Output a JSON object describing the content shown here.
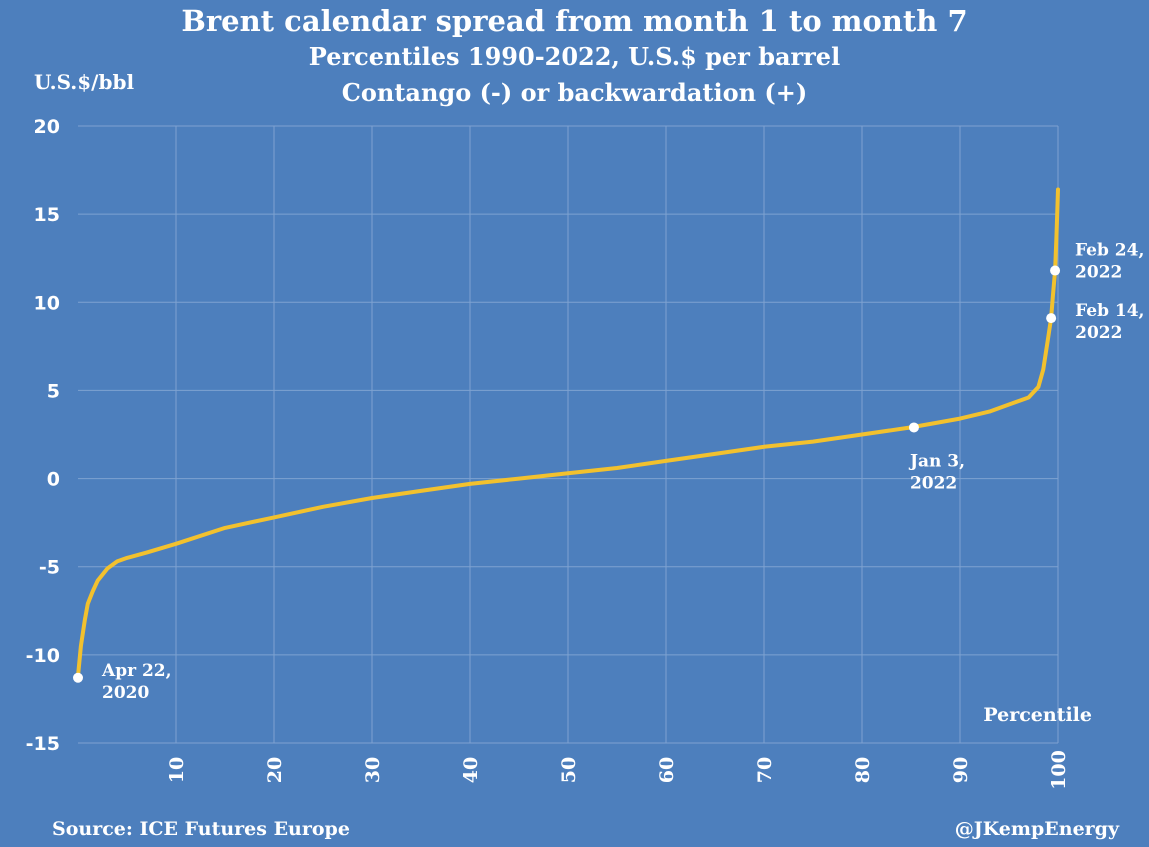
{
  "chart_data": {
    "type": "line",
    "title": "Brent calendar spread from month 1 to month 7",
    "subtitle_1": "Percentiles 1990-2022, U.S.$ per barrel",
    "subtitle_2": "Contango (-) or backwardation (+)",
    "ylabel": "U.S.$/bbl",
    "xlabel": "Percentile",
    "ylim": [
      -15,
      20
    ],
    "xlim": [
      0,
      100
    ],
    "y_ticks": [
      "20",
      "15",
      "10",
      "5",
      "0",
      "-5",
      "-10",
      "-15"
    ],
    "x_ticks": [
      "10",
      "20",
      "30",
      "40",
      "50",
      "60",
      "70",
      "80",
      "90",
      "100"
    ],
    "grid": true,
    "line_color": "#f2c12e",
    "series": [
      {
        "x": [
          0,
          0.3,
          0.7,
          1,
          1.5,
          2,
          3,
          4,
          5,
          7,
          10,
          15,
          20,
          25,
          30,
          35,
          40,
          45,
          50,
          55,
          60,
          65,
          70,
          75,
          80,
          85,
          90,
          93,
          95,
          97,
          98,
          98.5,
          99,
          99.3,
          99.5,
          99.7,
          99.85,
          100
        ],
        "y": [
          -11.2,
          -9.5,
          -8.0,
          -7.1,
          -6.4,
          -5.8,
          -5.1,
          -4.7,
          -4.5,
          -4.2,
          -3.7,
          -2.8,
          -2.2,
          -1.6,
          -1.1,
          -0.7,
          -0.3,
          0.0,
          0.3,
          0.6,
          1.0,
          1.4,
          1.8,
          2.1,
          2.5,
          2.9,
          3.4,
          3.8,
          4.2,
          4.6,
          5.2,
          6.2,
          8.0,
          9.1,
          10.5,
          11.8,
          13.8,
          16.4
        ]
      }
    ],
    "annotations": [
      {
        "x": 0,
        "y": -11.3,
        "label_1": "Apr 22,",
        "label_2": "2020"
      },
      {
        "x": 85.3,
        "y": 2.9,
        "label_1": "Jan 3,",
        "label_2": "2022"
      },
      {
        "x": 99.3,
        "y": 9.1,
        "label_1": "Feb 14,",
        "label_2": "2022"
      },
      {
        "x": 99.7,
        "y": 11.8,
        "label_1": "Feb 24,",
        "label_2": "2022"
      }
    ]
  },
  "footer": {
    "source": "Source: ICE Futures Europe",
    "handle": "@JKempEnergy"
  }
}
